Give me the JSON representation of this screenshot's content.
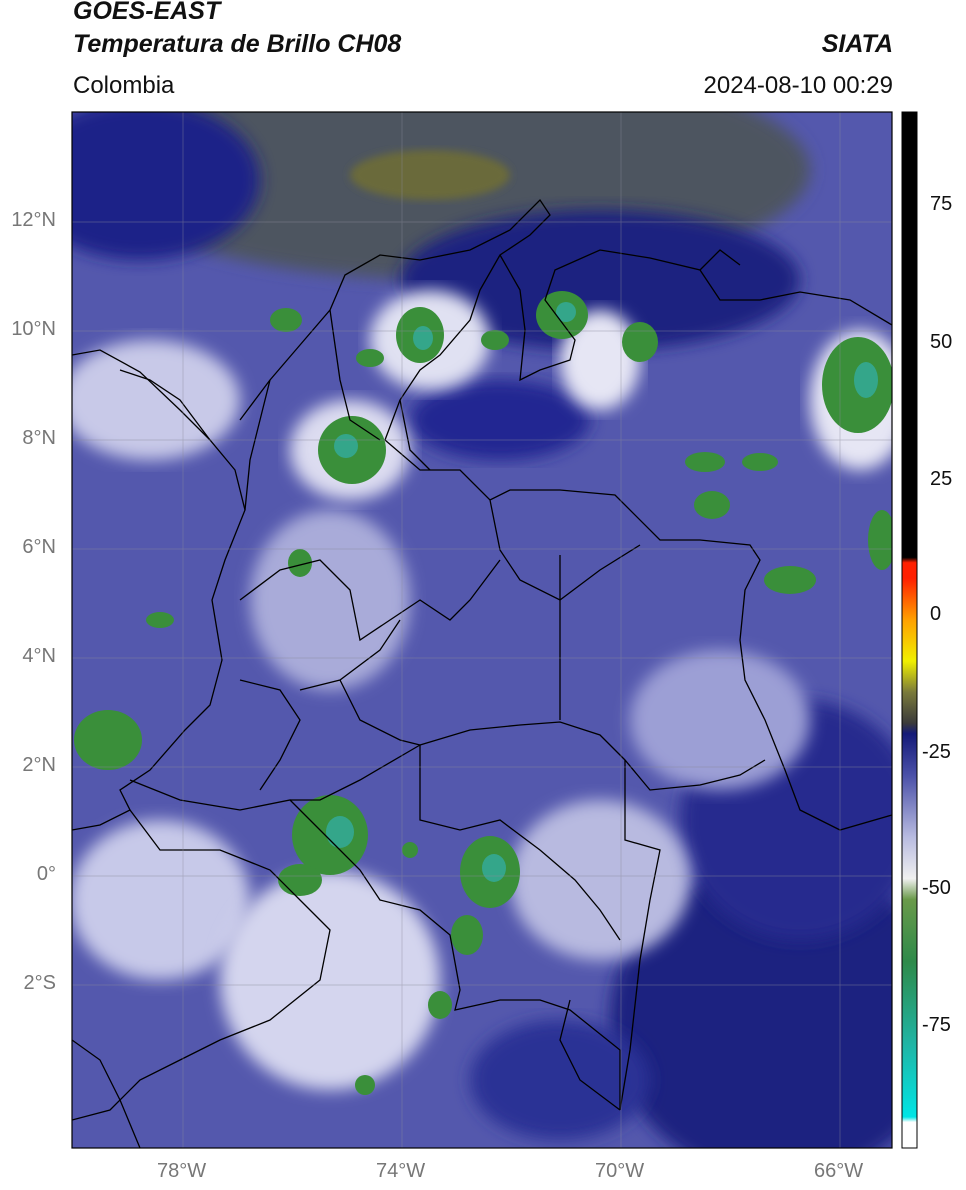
{
  "header": {
    "satellite": "GOES-EAST",
    "product": "Temperatura de Brillo CH08",
    "region": "Colombia",
    "agency": "SIATA",
    "timestamp": "2024-08-10 00:29"
  },
  "map": {
    "lat_labels": [
      "12°N",
      "10°N",
      "8°N",
      "6°N",
      "4°N",
      "2°N",
      "0°",
      "2°S"
    ],
    "lon_labels": [
      "78°W",
      "74°W",
      "70°W",
      "66°W"
    ],
    "colors": {
      "cold_blue": "#1a1f7a",
      "mid_blue": "#5a60b8",
      "light": "#cfd0ea",
      "green": "#3d8f3a",
      "olive": "#5a5a3a",
      "border": "#000000"
    }
  },
  "colorbar": {
    "labels": [
      "75",
      "50",
      "25",
      "0",
      "-25",
      "-50",
      "-75"
    ],
    "range": [
      -95,
      90
    ]
  }
}
